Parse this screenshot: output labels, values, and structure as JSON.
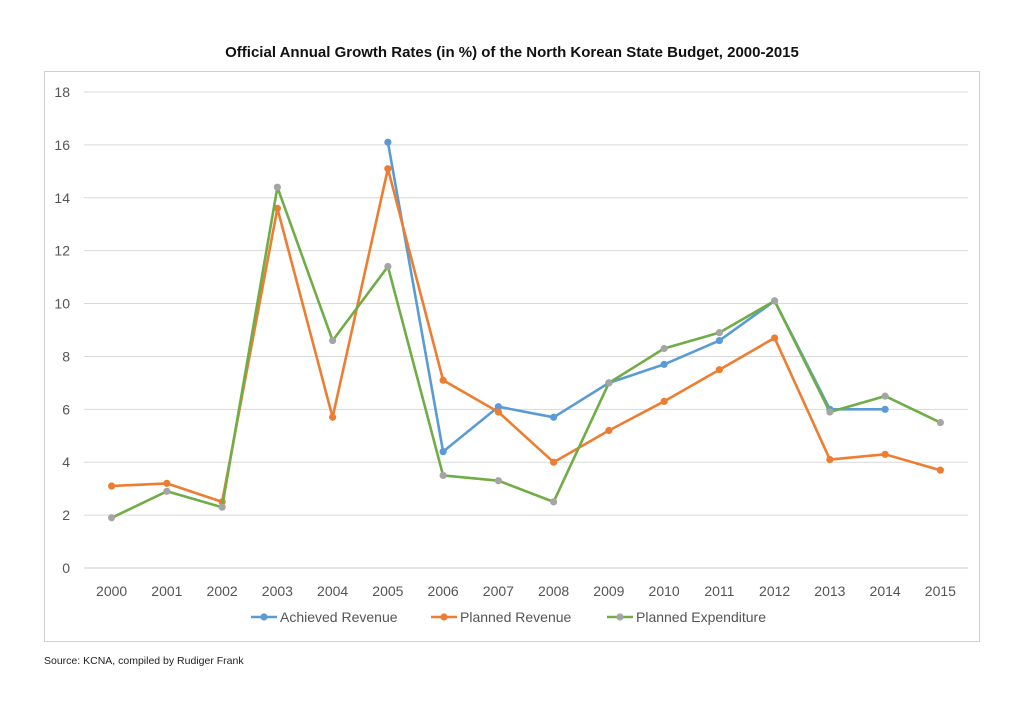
{
  "chart_data": {
    "type": "line",
    "title": "Official Annual Growth Rates (in %) of the North Korean State Budget, 2000-2015",
    "xlabel": "",
    "ylabel": "",
    "ylim": [
      0,
      18
    ],
    "yticks": [
      0,
      2,
      4,
      6,
      8,
      10,
      12,
      14,
      16,
      18
    ],
    "categories": [
      "2000",
      "2001",
      "2002",
      "2003",
      "2004",
      "2005",
      "2006",
      "2007",
      "2008",
      "2009",
      "2010",
      "2011",
      "2012",
      "2013",
      "2014",
      "2015"
    ],
    "grid": "horizontal",
    "legend_position": "bottom",
    "series": [
      {
        "name": "Achieved Revenue",
        "color": "#5b9bd5",
        "values": [
          null,
          null,
          null,
          null,
          null,
          16.1,
          4.4,
          6.1,
          5.7,
          7.0,
          7.7,
          8.6,
          10.1,
          6.0,
          6.0,
          null
        ]
      },
      {
        "name": "Planned Revenue",
        "color": "#ed7d31",
        "values": [
          3.1,
          3.2,
          2.5,
          13.6,
          5.7,
          15.1,
          7.1,
          5.9,
          4.0,
          5.2,
          6.3,
          7.5,
          8.7,
          4.1,
          4.3,
          3.7
        ]
      },
      {
        "name": "Planned Expenditure",
        "color": "#70ad47",
        "marker_color": "#a5a5a5",
        "values": [
          1.9,
          2.9,
          2.3,
          14.4,
          8.6,
          11.4,
          3.5,
          3.3,
          2.5,
          7.0,
          8.3,
          8.9,
          10.1,
          5.9,
          6.5,
          5.5
        ]
      }
    ]
  },
  "source_note": "Source: KCNA, compiled by Rudiger Frank"
}
